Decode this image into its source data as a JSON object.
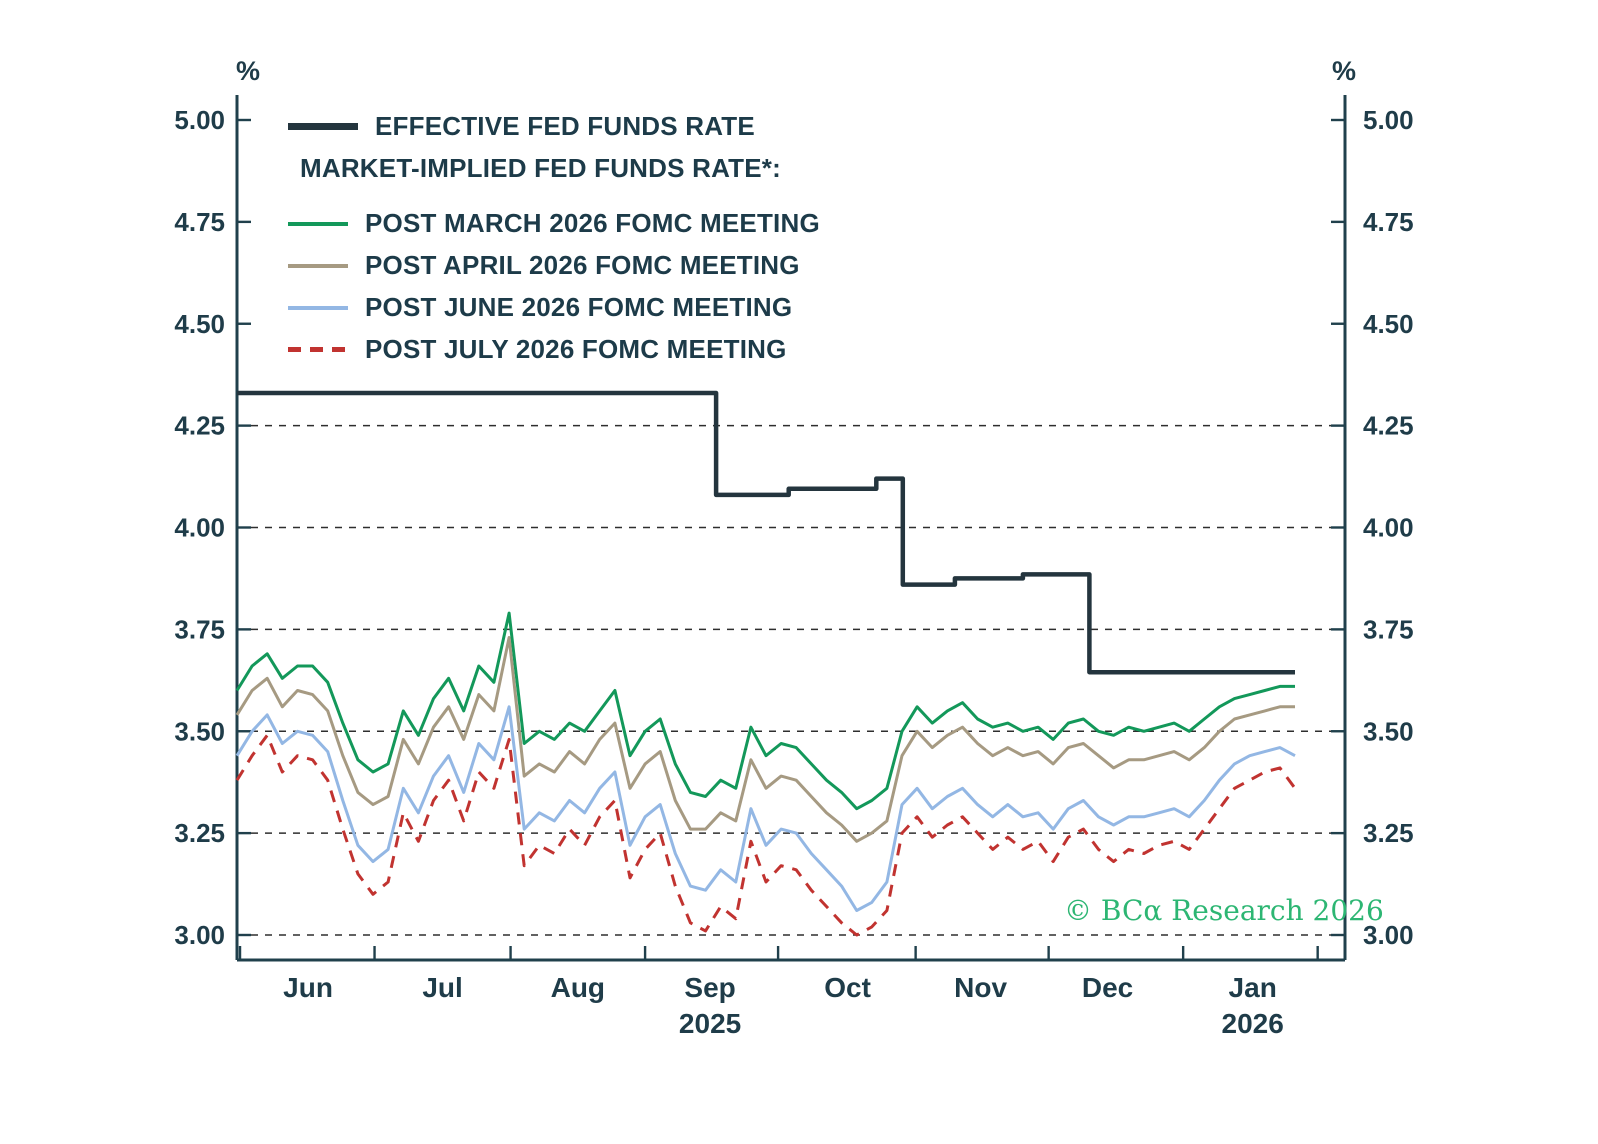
{
  "axis_unit_left": "%",
  "axis_unit_right": "%",
  "legend": {
    "row1": "EFFECTIVE FED FUNDS RATE",
    "row2": "MARKET-IMPLIED FED FUNDS RATE*:",
    "items": [
      "POST MARCH 2026 FOMC MEETING",
      "POST APRIL 2026 FOMC MEETING",
      "POST JUNE 2026 FOMC MEETING",
      "POST JULY 2026 FOMC MEETING"
    ]
  },
  "copyright": "© BCα Research 2026",
  "colors": {
    "effr": "#24353e",
    "march": "#13985a",
    "april": "#a69a82",
    "june": "#93b7e4",
    "july": "#c13330",
    "axis_text": "#1f3c49",
    "copyright": "#2db673"
  },
  "chart_data": {
    "type": "line",
    "title": "",
    "ylabel": "%",
    "ylim": [
      3.0,
      5.0
    ],
    "yticks": [
      5.0,
      4.75,
      4.5,
      4.25,
      4.0,
      3.75,
      3.5,
      3.25,
      3.0
    ],
    "gridlines": [
      4.25,
      4.0,
      3.75,
      3.5,
      3.25,
      3.0
    ],
    "legend_position": "top-left",
    "x_axis": {
      "tick_positions": [
        0.2,
        9.1,
        18.1,
        27.0,
        35.8,
        44.9,
        53.7,
        62.6,
        71.5
      ],
      "months": [
        {
          "label": "Jun",
          "pos": 4.7
        },
        {
          "label": "Jul",
          "pos": 13.6
        },
        {
          "label": "Aug",
          "pos": 22.55
        },
        {
          "label": "Sep",
          "pos": 31.3,
          "sub": "2025"
        },
        {
          "label": "Oct",
          "pos": 40.4
        },
        {
          "label": "Nov",
          "pos": 49.2
        },
        {
          "label": "Dec",
          "pos": 57.6
        },
        {
          "label": "Jan",
          "pos": 67.2,
          "sub": "2026"
        }
      ]
    },
    "series": [
      {
        "name": "EFFECTIVE FED FUNDS RATE",
        "color": "#24353e",
        "width": 4.5,
        "style": "solid",
        "points": [
          [
            0,
            4.33
          ],
          [
            31.7,
            4.33
          ],
          [
            31.7,
            4.08
          ],
          [
            36.5,
            4.08
          ],
          [
            36.5,
            4.095
          ],
          [
            42.3,
            4.095
          ],
          [
            42.3,
            4.12
          ],
          [
            44.05,
            4.12
          ],
          [
            44.05,
            3.86
          ],
          [
            47.5,
            3.86
          ],
          [
            47.5,
            3.875
          ],
          [
            52,
            3.875
          ],
          [
            52,
            3.885
          ],
          [
            56.4,
            3.885
          ],
          [
            56.4,
            3.645
          ],
          [
            70,
            3.645
          ]
        ]
      },
      {
        "name": "POST MARCH 2026 FOMC MEETING",
        "color": "#13985a",
        "width": 3,
        "style": "solid",
        "values": [
          3.6,
          3.66,
          3.69,
          3.63,
          3.66,
          3.66,
          3.62,
          3.52,
          3.43,
          3.4,
          3.42,
          3.55,
          3.49,
          3.58,
          3.63,
          3.55,
          3.66,
          3.62,
          3.79,
          3.47,
          3.5,
          3.48,
          3.52,
          3.5,
          3.55,
          3.6,
          3.44,
          3.5,
          3.53,
          3.42,
          3.35,
          3.34,
          3.38,
          3.36,
          3.51,
          3.44,
          3.47,
          3.46,
          3.42,
          3.38,
          3.35,
          3.31,
          3.33,
          3.36,
          3.5,
          3.56,
          3.52,
          3.55,
          3.57,
          3.53,
          3.51,
          3.52,
          3.5,
          3.51,
          3.48,
          3.52,
          3.53,
          3.5,
          3.49,
          3.51,
          3.5,
          3.51,
          3.52,
          3.5,
          3.53,
          3.56,
          3.58,
          3.59,
          3.6,
          3.61,
          3.61
        ]
      },
      {
        "name": "POST APRIL 2026 FOMC MEETING",
        "color": "#a69a82",
        "width": 3,
        "style": "solid",
        "values": [
          3.54,
          3.6,
          3.63,
          3.56,
          3.6,
          3.59,
          3.55,
          3.44,
          3.35,
          3.32,
          3.34,
          3.48,
          3.42,
          3.51,
          3.56,
          3.48,
          3.59,
          3.55,
          3.73,
          3.39,
          3.42,
          3.4,
          3.45,
          3.42,
          3.48,
          3.52,
          3.36,
          3.42,
          3.45,
          3.33,
          3.26,
          3.26,
          3.3,
          3.28,
          3.43,
          3.36,
          3.39,
          3.38,
          3.34,
          3.3,
          3.27,
          3.23,
          3.25,
          3.28,
          3.44,
          3.5,
          3.46,
          3.49,
          3.51,
          3.47,
          3.44,
          3.46,
          3.44,
          3.45,
          3.42,
          3.46,
          3.47,
          3.44,
          3.41,
          3.43,
          3.43,
          3.44,
          3.45,
          3.43,
          3.46,
          3.5,
          3.53,
          3.54,
          3.55,
          3.56,
          3.56
        ]
      },
      {
        "name": "POST JUNE 2026 FOMC MEETING",
        "color": "#93b7e4",
        "width": 3,
        "style": "solid",
        "values": [
          3.44,
          3.5,
          3.54,
          3.47,
          3.5,
          3.49,
          3.45,
          3.33,
          3.22,
          3.18,
          3.21,
          3.36,
          3.3,
          3.39,
          3.44,
          3.35,
          3.47,
          3.43,
          3.56,
          3.26,
          3.3,
          3.28,
          3.33,
          3.3,
          3.36,
          3.4,
          3.22,
          3.29,
          3.32,
          3.2,
          3.12,
          3.11,
          3.16,
          3.13,
          3.31,
          3.22,
          3.26,
          3.25,
          3.2,
          3.16,
          3.12,
          3.06,
          3.08,
          3.13,
          3.32,
          3.36,
          3.31,
          3.34,
          3.36,
          3.32,
          3.29,
          3.32,
          3.29,
          3.3,
          3.26,
          3.31,
          3.33,
          3.29,
          3.27,
          3.29,
          3.29,
          3.3,
          3.31,
          3.29,
          3.33,
          3.38,
          3.42,
          3.44,
          3.45,
          3.46,
          3.44
        ]
      },
      {
        "name": "POST JULY 2026 FOMC MEETING",
        "color": "#c13330",
        "width": 3,
        "style": "dashed",
        "dash": "12 9",
        "values": [
          3.38,
          3.44,
          3.49,
          3.4,
          3.44,
          3.43,
          3.38,
          3.26,
          3.15,
          3.1,
          3.13,
          3.3,
          3.23,
          3.33,
          3.38,
          3.28,
          3.4,
          3.36,
          3.48,
          3.17,
          3.22,
          3.2,
          3.26,
          3.22,
          3.29,
          3.33,
          3.14,
          3.21,
          3.25,
          3.12,
          3.03,
          3.01,
          3.07,
          3.04,
          3.23,
          3.13,
          3.17,
          3.16,
          3.11,
          3.07,
          3.03,
          3.0,
          3.02,
          3.06,
          3.25,
          3.29,
          3.24,
          3.27,
          3.29,
          3.25,
          3.21,
          3.24,
          3.21,
          3.23,
          3.18,
          3.24,
          3.26,
          3.21,
          3.18,
          3.21,
          3.2,
          3.22,
          3.23,
          3.21,
          3.26,
          3.31,
          3.36,
          3.38,
          3.4,
          3.41,
          3.36
        ]
      }
    ]
  }
}
